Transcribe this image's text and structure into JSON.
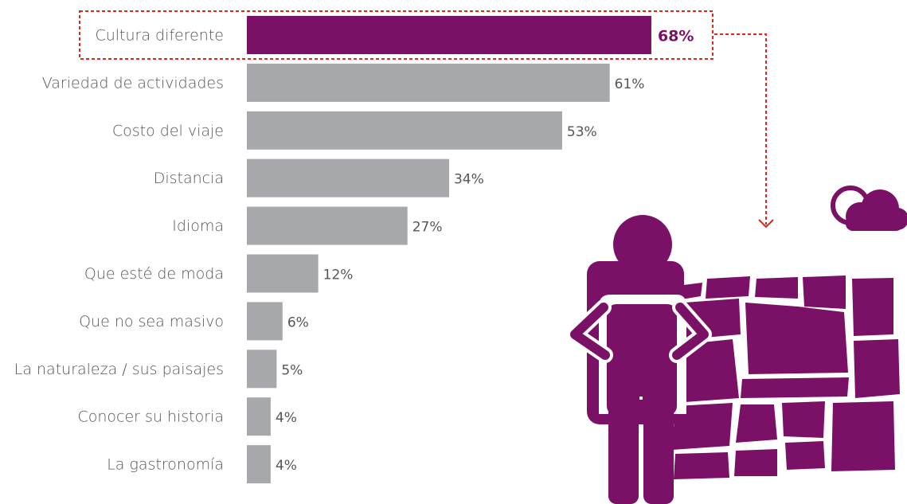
{
  "chart_data": {
    "type": "bar",
    "orientation": "horizontal",
    "categories": [
      "Cultura diferente",
      "Variedad de actividades",
      "Costo del viaje",
      "Distancia",
      "Idioma",
      "Que esté de moda",
      "Que no sea masivo",
      "La naturaleza / sus paisajes",
      "Conocer su historia",
      "La gastronomía"
    ],
    "values": [
      68,
      61,
      53,
      34,
      27,
      12,
      6,
      5,
      4,
      4
    ],
    "value_labels": [
      "68%",
      "61%",
      "53%",
      "34%",
      "27%",
      "12%",
      "6%",
      "5%",
      "4%",
      "4%"
    ],
    "colors": [
      "#7b1166",
      "#a7a8ab",
      "#a7a8ab",
      "#a7a8ab",
      "#a7a8ab",
      "#a7a8ab",
      "#a7a8ab",
      "#a7a8ab",
      "#a7a8ab",
      "#a7a8ab"
    ]
  }
}
